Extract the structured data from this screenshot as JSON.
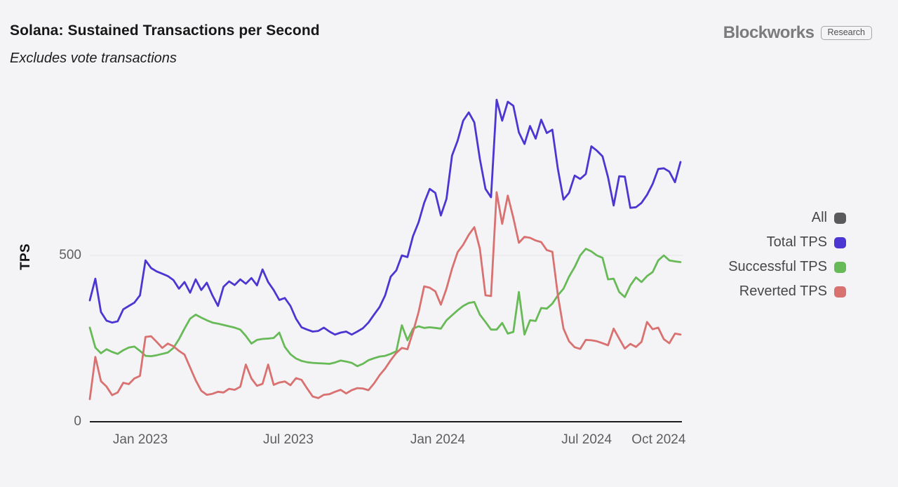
{
  "logo": {
    "brand": "Blockworks",
    "badge": "Research"
  },
  "chart_data": {
    "type": "line",
    "title": "Solana: Sustained Transactions per Second",
    "subtitle": "Excludes vote transactions",
    "ylabel": "TPS",
    "ylim": [
      0,
      1000
    ],
    "y_ticks": [
      {
        "label": "0",
        "value": 0
      },
      {
        "label": "500",
        "value": 500
      }
    ],
    "x_ticks": [
      {
        "label": "Jan 2023",
        "pos": 0.0855
      },
      {
        "label": "Jul 2023",
        "pos": 0.336
      },
      {
        "label": "Jan 2024",
        "pos": 0.589
      },
      {
        "label": "Jul 2024",
        "pos": 0.841
      },
      {
        "label": "Oct 2024",
        "pos": 0.963
      }
    ],
    "x_description": "weekly data points, approx. late Oct 2022 through late Oct 2024",
    "grid": {
      "horizontal_lines": [
        500
      ]
    },
    "axis_color": "#1c1c1c",
    "gridline_color": "#e6e6ea",
    "background": "#f4f4f6",
    "legend": {
      "position": "right",
      "items": [
        {
          "label": "All",
          "color": "#5a5a5a",
          "role": "toggle-all-series"
        },
        {
          "label": "Total TPS",
          "color": "#4b36d2",
          "role": "series"
        },
        {
          "label": "Successful TPS",
          "color": "#68b957",
          "role": "series"
        },
        {
          "label": "Reverted TPS",
          "color": "#d87170",
          "role": "series"
        }
      ]
    },
    "series": [
      {
        "name": "Total TPS",
        "color": "#4b36d2",
        "values": [
          365,
          430,
          330,
          304,
          298,
          302,
          338,
          348,
          358,
          380,
          485,
          462,
          452,
          445,
          438,
          426,
          400,
          420,
          388,
          428,
          396,
          418,
          380,
          348,
          406,
          422,
          411,
          428,
          415,
          432,
          410,
          458,
          420,
          396,
          366,
          372,
          348,
          310,
          284,
          277,
          271,
          273,
          283,
          271,
          262,
          268,
          271,
          262,
          271,
          281,
          298,
          322,
          345,
          380,
          436,
          455,
          500,
          495,
          558,
          600,
          658,
          700,
          688,
          620,
          670,
          800,
          845,
          905,
          930,
          900,
          790,
          700,
          675,
          968,
          905,
          962,
          950,
          870,
          835,
          889,
          851,
          908,
          868,
          878,
          760,
          668,
          688,
          740,
          730,
          745,
          828,
          815,
          798,
          735,
          650,
          738,
          737,
          643,
          645,
          658,
          682,
          715,
          760,
          762,
          752,
          720,
          781
        ]
      },
      {
        "name": "Successful TPS",
        "color": "#68b957",
        "values": [
          283,
          223,
          206,
          218,
          210,
          204,
          215,
          223,
          226,
          213,
          198,
          197,
          200,
          204,
          208,
          222,
          248,
          280,
          310,
          322,
          313,
          305,
          298,
          295,
          291,
          287,
          283,
          277,
          258,
          235,
          246,
          249,
          250,
          252,
          268,
          225,
          203,
          190,
          183,
          179,
          177,
          176,
          175,
          174,
          178,
          184,
          181,
          177,
          167,
          174,
          185,
          191,
          196,
          198,
          204,
          212,
          290,
          245,
          280,
          287,
          282,
          284,
          282,
          280,
          305,
          320,
          335,
          348,
          357,
          360,
          322,
          300,
          277,
          277,
          297,
          265,
          270,
          390,
          262,
          305,
          303,
          342,
          340,
          355,
          380,
          400,
          436,
          465,
          500,
          520,
          512,
          500,
          493,
          428,
          430,
          390,
          375,
          410,
          434,
          420,
          438,
          450,
          485,
          500,
          485,
          482,
          480
        ]
      },
      {
        "name": "Reverted TPS",
        "color": "#d87170",
        "values": [
          68,
          195,
          122,
          106,
          80,
          88,
          117,
          113,
          130,
          138,
          255,
          257,
          240,
          222,
          235,
          227,
          213,
          202,
          163,
          125,
          93,
          81,
          84,
          90,
          88,
          99,
          96,
          105,
          172,
          130,
          108,
          114,
          172,
          111,
          118,
          121,
          110,
          131,
          126,
          100,
          76,
          71,
          81,
          83,
          90,
          96,
          85,
          95,
          101,
          100,
          95,
          115,
          140,
          160,
          185,
          207,
          222,
          218,
          270,
          330,
          407,
          403,
          392,
          352,
          400,
          460,
          510,
          532,
          562,
          585,
          520,
          380,
          378,
          690,
          595,
          680,
          613,
          538,
          556,
          553,
          545,
          540,
          516,
          511,
          380,
          280,
          242,
          224,
          219,
          246,
          245,
          242,
          236,
          230,
          280,
          250,
          220,
          234,
          225,
          240,
          300,
          278,
          283,
          248,
          236,
          265,
          262
        ]
      }
    ]
  }
}
